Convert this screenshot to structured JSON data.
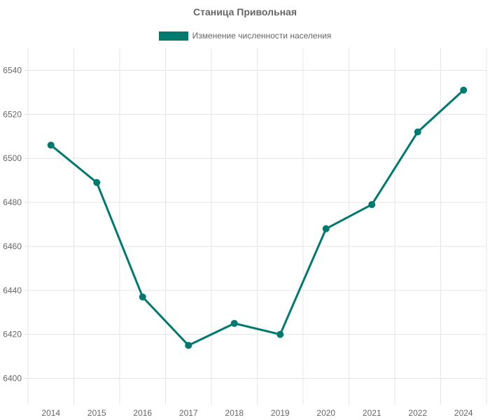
{
  "chart_data": {
    "type": "line",
    "title": "Станица Привольная",
    "xlabel": "",
    "ylabel": "",
    "categories": [
      "2014",
      "2015",
      "2016",
      "2017",
      "2018",
      "2019",
      "2020",
      "2021",
      "2022",
      "2024"
    ],
    "series": [
      {
        "name": "Изменение численности населения",
        "values": [
          6506,
          6489,
          6437,
          6415,
          6425,
          6420,
          6468,
          6479,
          6512,
          6531
        ],
        "color": "#00796f"
      }
    ],
    "ylim": [
      6390,
      6550
    ],
    "yticks": [
      6400,
      6420,
      6440,
      6460,
      6480,
      6500,
      6520,
      6540
    ],
    "grid": true,
    "legend_position": "top-center"
  }
}
